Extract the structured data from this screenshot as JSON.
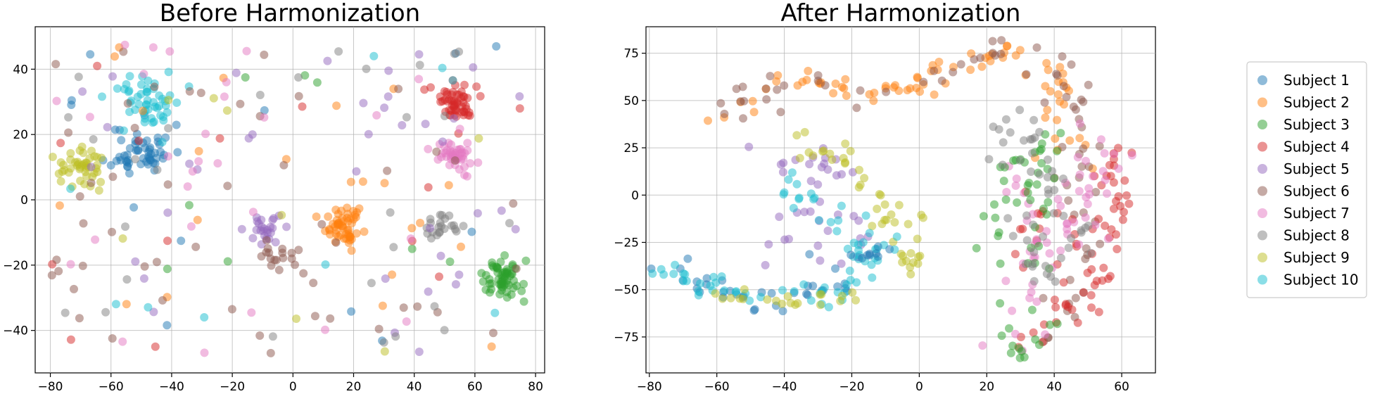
{
  "legend": {
    "placement": "right",
    "entries": [
      "Subject 1",
      "Subject 2",
      "Subject 3",
      "Subject 4",
      "Subject 5",
      "Subject 6",
      "Subject 7",
      "Subject 8",
      "Subject 9",
      "Subject 10"
    ]
  },
  "colors": [
    "#1f77b4",
    "#ff7f0e",
    "#2ca02c",
    "#d62728",
    "#9467bd",
    "#8c564b",
    "#e377c2",
    "#7f7f7f",
    "#bcbd22",
    "#17becf"
  ],
  "chart_data": [
    {
      "type": "scatter",
      "title": "Before Harmonization",
      "xlim": [
        -85,
        83
      ],
      "ylim": [
        -53,
        53
      ],
      "xticks": [
        -80,
        -60,
        -40,
        -20,
        0,
        20,
        40,
        60,
        80
      ],
      "yticks": [
        -40,
        -20,
        0,
        20,
        40
      ],
      "grid": true,
      "clusters": [
        {
          "series": 0,
          "cx": -50,
          "cy": 15,
          "sx": 5,
          "sy": 4,
          "n": 55,
          "seed": 11
        },
        {
          "series": 9,
          "cx": -47,
          "cy": 30,
          "sx": 6,
          "sy": 4,
          "n": 50,
          "seed": 12
        },
        {
          "series": 8,
          "cx": -70,
          "cy": 10,
          "sx": 4,
          "sy": 3,
          "n": 45,
          "seed": 13
        },
        {
          "series": 3,
          "cx": 55,
          "cy": 30,
          "sx": 4,
          "sy": 3,
          "n": 55,
          "seed": 14
        },
        {
          "series": 6,
          "cx": 54,
          "cy": 14,
          "sx": 3,
          "sy": 3,
          "n": 45,
          "seed": 15
        },
        {
          "series": 1,
          "cx": 17,
          "cy": -8,
          "sx": 3,
          "sy": 3,
          "n": 55,
          "seed": 16
        },
        {
          "series": 2,
          "cx": 69,
          "cy": -25,
          "sx": 3,
          "sy": 3,
          "n": 60,
          "seed": 17
        },
        {
          "series": 4,
          "cx": -10,
          "cy": -10,
          "sx": 3,
          "sy": 3,
          "n": 25,
          "seed": 18
        },
        {
          "series": 7,
          "cx": 48,
          "cy": -7,
          "sx": 3,
          "sy": 2,
          "n": 22,
          "seed": 19
        },
        {
          "series": 5,
          "cx": -5,
          "cy": -17,
          "sx": 4,
          "sy": 3,
          "n": 18,
          "seed": 20
        }
      ],
      "scatter_noise": [
        {
          "series": 0,
          "n": 12,
          "seed": 31
        },
        {
          "series": 1,
          "n": 22,
          "seed": 32
        },
        {
          "series": 2,
          "n": 8,
          "seed": 33
        },
        {
          "series": 3,
          "n": 14,
          "seed": 34
        },
        {
          "series": 4,
          "n": 38,
          "seed": 35
        },
        {
          "series": 5,
          "n": 50,
          "seed": 36
        },
        {
          "series": 6,
          "n": 28,
          "seed": 37
        },
        {
          "series": 7,
          "n": 28,
          "seed": 38
        },
        {
          "series": 8,
          "n": 8,
          "seed": 39
        },
        {
          "series": 9,
          "n": 10,
          "seed": 40
        }
      ],
      "noise_range": {
        "x": [
          -80,
          75
        ],
        "y": [
          -47,
          48
        ]
      }
    },
    {
      "type": "scatter",
      "title": "After Harmonization",
      "xlim": [
        -81,
        70
      ],
      "ylim": [
        -94,
        89
      ],
      "xticks": [
        -80,
        -60,
        -40,
        -20,
        0,
        20,
        40,
        60
      ],
      "yticks": [
        -75,
        -50,
        -25,
        0,
        25,
        50,
        75
      ],
      "grid": true,
      "paths": [
        {
          "series": 1,
          "points": [
            [
              -60,
              35
            ],
            [
              -58,
              50
            ],
            [
              -45,
              56
            ],
            [
              -30,
              62
            ],
            [
              -20,
              56
            ],
            [
              -10,
              54
            ],
            [
              0,
              56
            ],
            [
              5,
              62
            ],
            [
              12,
              72
            ],
            [
              20,
              70
            ],
            [
              28,
              74
            ],
            [
              35,
              66
            ],
            [
              42,
              60
            ],
            [
              42,
              40
            ],
            [
              45,
              15
            ]
          ],
          "n": 80,
          "spread": 3.2,
          "seed": 51
        },
        {
          "series": 5,
          "points": [
            [
              -58,
              42
            ],
            [
              -45,
              56
            ],
            [
              -30,
              62
            ],
            [
              -15,
              55
            ],
            [
              0,
              54
            ],
            [
              12,
              68
            ],
            [
              22,
              76
            ],
            [
              30,
              78
            ],
            [
              38,
              70
            ],
            [
              44,
              55
            ],
            [
              46,
              30
            ],
            [
              50,
              0
            ],
            [
              48,
              -40
            ],
            [
              42,
              -70
            ],
            [
              35,
              -78
            ]
          ],
          "n": 75,
          "spread": 4,
          "seed": 52
        },
        {
          "series": 4,
          "points": [
            [
              -55,
              25
            ],
            [
              -50,
              20
            ],
            [
              -42,
              18
            ],
            [
              -30,
              20
            ],
            [
              -25,
              10
            ],
            [
              -32,
              -10
            ],
            [
              -38,
              -20
            ],
            [
              -35,
              -35
            ],
            [
              -25,
              -40
            ],
            [
              -20,
              -30
            ],
            [
              -18,
              -15
            ],
            [
              -10,
              -5
            ]
          ],
          "n": 40,
          "spread": 4,
          "seed": 53
        },
        {
          "series": 8,
          "points": [
            [
              -40,
              28
            ],
            [
              -30,
              26
            ],
            [
              -25,
              22
            ],
            [
              -20,
              15
            ],
            [
              -15,
              5
            ],
            [
              -10,
              -5
            ],
            [
              -5,
              -15
            ],
            [
              -2,
              -30
            ],
            [
              -5,
              -40
            ],
            [
              -2,
              -10
            ]
          ],
          "n": 45,
          "spread": 3.5,
          "seed": 54
        },
        {
          "series": 9,
          "points": [
            [
              -40,
              10
            ],
            [
              -35,
              0
            ],
            [
              -25,
              -10
            ],
            [
              -15,
              -20
            ],
            [
              -18,
              -30
            ],
            [
              -10,
              -25
            ],
            [
              -5,
              -35
            ]
          ],
          "n": 35,
          "spread": 3.5,
          "seed": 55
        },
        {
          "series": 0,
          "points": [
            [
              -77,
              -38
            ],
            [
              -65,
              -45
            ],
            [
              -55,
              -53
            ],
            [
              -45,
              -58
            ],
            [
              -35,
              -52
            ],
            [
              -25,
              -45
            ],
            [
              -22,
              -30
            ],
            [
              -15,
              -25
            ],
            [
              -10,
              -35
            ]
          ],
          "n": 45,
          "spread": 3,
          "seed": 56
        },
        {
          "series": 9,
          "points": [
            [
              -77,
              -40
            ],
            [
              -62,
              -48
            ],
            [
              -48,
              -55
            ],
            [
              -40,
              -50
            ],
            [
              -30,
              -55
            ],
            [
              -20,
              -50
            ],
            [
              -18,
              -40
            ]
          ],
          "n": 40,
          "spread": 3,
          "seed": 57
        },
        {
          "series": 8,
          "points": [
            [
              -60,
              -53
            ],
            [
              -48,
              -57
            ],
            [
              -38,
              -60
            ],
            [
              -28,
              -55
            ],
            [
              -20,
              -58
            ]
          ],
          "n": 20,
          "spread": 2.5,
          "seed": 58
        },
        {
          "series": 3,
          "points": [
            [
              28,
              -35
            ],
            [
              35,
              -15
            ],
            [
              42,
              -5
            ],
            [
              52,
              -25
            ],
            [
              55,
              -45
            ],
            [
              48,
              -60
            ],
            [
              40,
              -70
            ],
            [
              32,
              -80
            ],
            [
              60,
              -5
            ],
            [
              62,
              15
            ],
            [
              55,
              25
            ],
            [
              60,
              -10
            ]
          ],
          "n": 70,
          "spread": 3.5,
          "seed": 59
        },
        {
          "series": 6,
          "points": [
            [
              25,
              20
            ],
            [
              30,
              0
            ],
            [
              32,
              -20
            ],
            [
              40,
              -30
            ],
            [
              48,
              -20
            ],
            [
              50,
              0
            ],
            [
              52,
              20
            ],
            [
              55,
              30
            ],
            [
              30,
              -50
            ],
            [
              28,
              -70
            ],
            [
              35,
              -80
            ]
          ],
          "n": 60,
          "spread": 4.5,
          "seed": 60
        },
        {
          "series": 2,
          "points": [
            [
              20,
              -40
            ],
            [
              24,
              -20
            ],
            [
              28,
              -5
            ],
            [
              30,
              15
            ],
            [
              35,
              35
            ],
            [
              40,
              20
            ],
            [
              30,
              -60
            ],
            [
              25,
              -75
            ],
            [
              30,
              -85
            ],
            [
              38,
              -65
            ]
          ],
          "n": 55,
          "spread": 4.5,
          "seed": 61
        },
        {
          "series": 7,
          "points": [
            [
              22,
              40
            ],
            [
              28,
              20
            ],
            [
              32,
              -10
            ],
            [
              36,
              -30
            ],
            [
              40,
              -50
            ],
            [
              44,
              -40
            ],
            [
              48,
              -20
            ],
            [
              30,
              40
            ],
            [
              38,
              30
            ]
          ],
          "n": 50,
          "spread": 4.5,
          "seed": 62
        }
      ]
    }
  ]
}
